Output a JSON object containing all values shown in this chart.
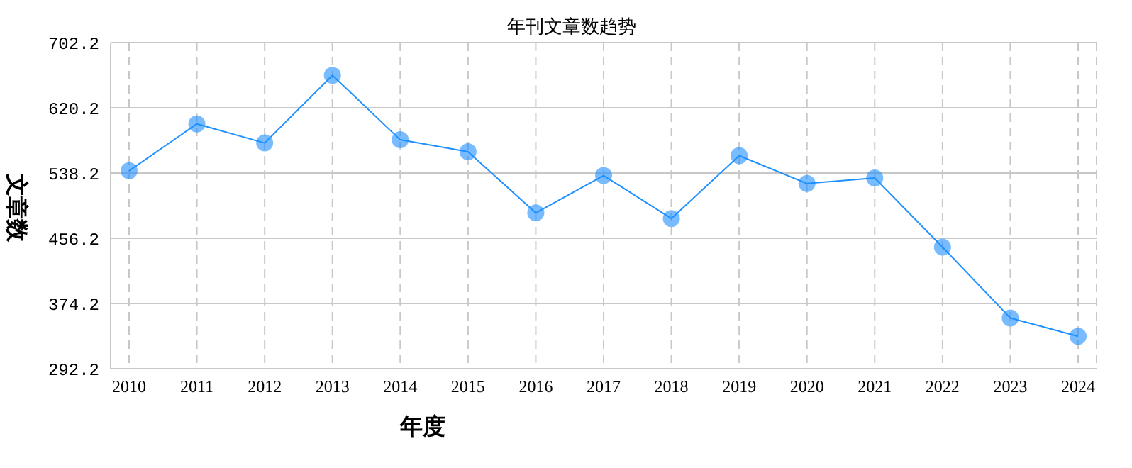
{
  "chart_data": {
    "type": "line",
    "title": "年刊文章数趋势",
    "xlabel": "年度",
    "ylabel": "文章数",
    "categories": [
      "2010",
      "2011",
      "2012",
      "2013",
      "2014",
      "2015",
      "2016",
      "2017",
      "2018",
      "2019",
      "2020",
      "2021",
      "2022",
      "2023",
      "2024"
    ],
    "series": [
      {
        "color": "#1e90ff",
        "values": [
          541,
          600,
          576,
          661,
          580,
          565,
          488,
          535,
          481,
          560,
          525,
          532,
          445,
          356,
          333
        ]
      }
    ],
    "ylim": [
      292.2,
      702.2
    ],
    "yticks": [
      292.2,
      374.2,
      456.2,
      538.2,
      620.2,
      702.2
    ],
    "grid": true,
    "legend": false,
    "marker": "circle",
    "line_style": "solid"
  }
}
